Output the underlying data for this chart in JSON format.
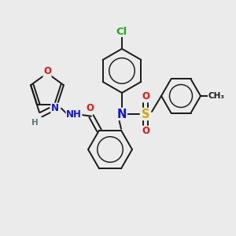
{
  "background_color": "#ebebeb",
  "bond_color": "#1a1a1a",
  "lw": 1.4,
  "fs": 8.5,
  "colors": {
    "Cl": "#22aa22",
    "N": "#1010ee",
    "O": "#ee1010",
    "S": "#ccaa00",
    "H": "#607878",
    "C": "#1a1a1a"
  },
  "layout": {
    "xlim": [
      0,
      300
    ],
    "ylim": [
      0,
      300
    ]
  }
}
